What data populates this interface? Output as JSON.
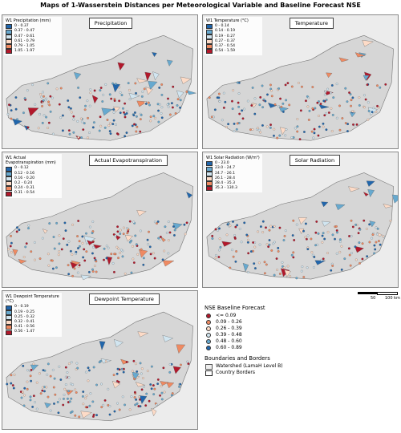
{
  "title": "Maps of 1-Wasserstein Distances per Meteorological Variable and Baseline Forecast NSE",
  "class_colors": [
    "#2166ac",
    "#67a9cf",
    "#d1e5f0",
    "#fddbc7",
    "#ef8a62",
    "#b2182b"
  ],
  "panels": [
    {
      "name": "Precipitation",
      "legend_title": "W1 Precipitation (mm)",
      "classes": [
        "0 - 0.37",
        "0.37 - 0.47",
        "0.47 - 0.61",
        "0.61 - 0.79",
        "0.79 - 1.05",
        "1.05 - 1.97"
      ]
    },
    {
      "name": "Temperature",
      "legend_title": "W1 Temperature (°C)",
      "classes": [
        "0 - 0.14",
        "0.14 - 0.19",
        "0.19 - 0.27",
        "0.27 - 0.37",
        "0.37 - 0.54",
        "0.54 - 1.59"
      ]
    },
    {
      "name": "Actual Evapotranspiration",
      "legend_title": "W1 Actual Evapotranspiration (mm)",
      "classes": [
        "0 - 0.12",
        "0.12 - 0.16",
        "0.16 - 0.20",
        "0.2 - 0.24",
        "0.24 - 0.31",
        "0.31 - 0.54"
      ]
    },
    {
      "name": "Solar Radiation",
      "legend_title": "W1 Solar Radiation (W/m²)",
      "classes": [
        "0 - 23.0",
        "23.0 - 24.7",
        "24.7 - 26.1",
        "26.1 - 28.4",
        "28.4 - 35.3",
        "35.3 - 130.3"
      ]
    },
    {
      "name": "Dewpoint Temperature",
      "legend_title": "W1 Dewpoint Temperature (°C)",
      "classes": [
        "0 - 0.19",
        "0.19 - 0.25",
        "0.25 - 0.32",
        "0.32 - 0.41",
        "0.41 - 0.56",
        "0.56 - 1.47"
      ]
    }
  ],
  "scale_bar": [
    "50",
    "100 km"
  ],
  "nse_legend": {
    "title": "NSE Baseline Forecast",
    "classes": [
      "<= 0.09",
      "0.09 - 0.26",
      "0.26 - 0.39",
      "0.39 - 0.48",
      "0.48 - 0.60",
      "0.60 - 0.89"
    ],
    "colors": [
      "#b2182b",
      "#ef8a62",
      "#fddbc7",
      "#d1e5f0",
      "#67a9cf",
      "#2166ac"
    ]
  },
  "borders_legend": {
    "title": "Boundaries and Borders",
    "items": [
      "Watershed (LamaH Level B)",
      "Country Borders"
    ]
  }
}
